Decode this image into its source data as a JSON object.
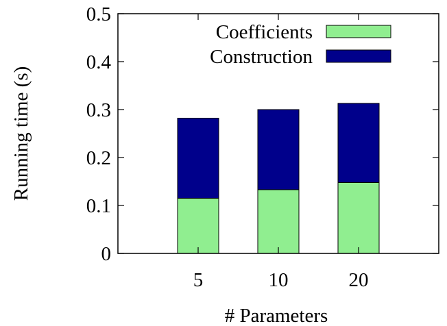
{
  "chart_data": {
    "type": "bar",
    "stacked": true,
    "categories": [
      "5",
      "10",
      "20"
    ],
    "series": [
      {
        "name": "Coefficients",
        "color": "#90ee90",
        "values": [
          0.115,
          0.133,
          0.148
        ]
      },
      {
        "name": "Construction",
        "color": "#00008b",
        "values": [
          0.167,
          0.167,
          0.165
        ]
      }
    ],
    "xlabel": "# Parameters",
    "ylabel": "Running time (s)",
    "ylim": [
      0,
      0.5
    ],
    "yticks": [
      "0",
      "0.1",
      "0.2",
      "0.3",
      "0.4",
      "0.5"
    ],
    "grid": false,
    "legend_position": "top-right"
  }
}
